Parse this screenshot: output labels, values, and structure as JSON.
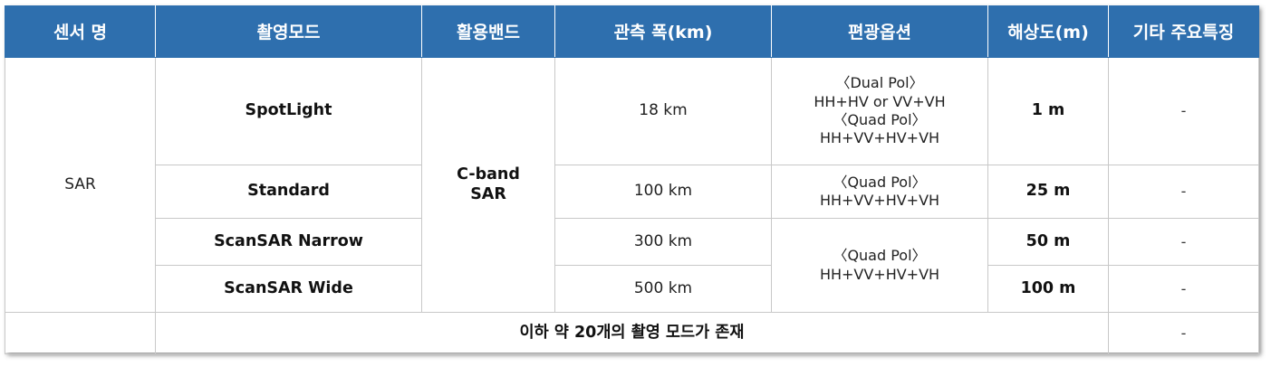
{
  "headers": [
    "센서 명",
    "촬영모드",
    "활용밴드",
    "관측 폭(km)",
    "편광옵션",
    "해상도(m)",
    "기타 주요특징"
  ],
  "sensor": "SAR",
  "band": {
    "line1": "C-band",
    "line2": "SAR"
  },
  "rows": [
    {
      "mode": "SpotLight",
      "swath": "18 km",
      "pol": [
        "〈Dual Pol〉",
        "HH+HV or VV+VH",
        "〈Quad Pol〉",
        "HH+VV+HV+VH"
      ],
      "resolution": "1 m",
      "note": "-"
    },
    {
      "mode": "Standard",
      "swath": "100 km",
      "pol": [
        "〈Quad Pol〉",
        "HH+VV+HV+VH"
      ],
      "resolution": "25 m",
      "note": "-"
    },
    {
      "mode": "ScanSAR Narrow",
      "swath": "300 km",
      "pol": [
        "〈Quad Pol〉",
        "HH+VV+HV+VH"
      ],
      "resolution": "50 m",
      "note": "-"
    },
    {
      "mode": "ScanSAR Wide",
      "swath": "500 km",
      "resolution": "100 m",
      "note": "-"
    }
  ],
  "footer": {
    "text": "이하 약 20개의 촬영 모드가 존재",
    "note": "-"
  }
}
